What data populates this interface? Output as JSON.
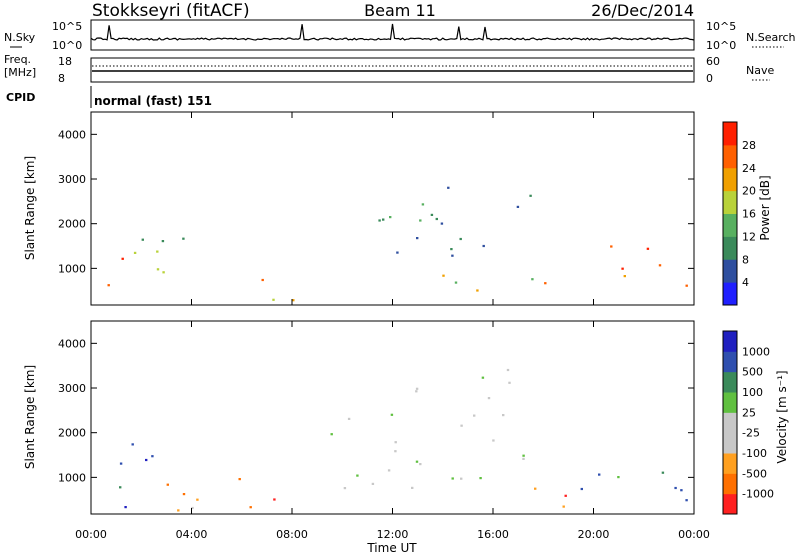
{
  "header": {
    "station": "Stokkseyri (fitACF)",
    "beam": "Beam 11",
    "date": "26/Dec/2014"
  },
  "top_panels": {
    "nsky_label": "N.Sky",
    "nsky_ticks": [
      "10^5",
      "10^0"
    ],
    "nsearch_label": "N.Search",
    "nsearch_ticks": [
      "10^5",
      "10^0"
    ],
    "freq_label": "Freq.",
    "freq_unit": "[MHz]",
    "freq_ticks": [
      "18",
      "8"
    ],
    "nave_label": "Nave",
    "nave_ticks": [
      "60",
      "0"
    ],
    "cpid_label": "CPID",
    "cpid_value": "normal (fast) 151"
  },
  "colors": {
    "power_scale": [
      "#2020ff",
      "#2f4f9f",
      "#3a8a5a",
      "#58b060",
      "#b9d23a",
      "#f0a000",
      "#ff6000",
      "#ff2000"
    ],
    "velocity_scale": [
      "#ff2020",
      "#ff7000",
      "#ffa020",
      "#c8c8c8",
      "#c8c8c8",
      "#60c040",
      "#3a8a5a",
      "#2f4faf",
      "#2020c0"
    ]
  },
  "chart_data": [
    {
      "type": "heatmap",
      "panel": "power",
      "ylabel": "Slant Range [km]",
      "ylim": [
        180,
        4500
      ],
      "y_ticks": [
        "1000",
        "2000",
        "3000",
        "4000"
      ],
      "x_ticks": [
        "00:00",
        "04:00",
        "08:00",
        "12:00",
        "16:00",
        "20:00",
        "00:00"
      ],
      "colorbar": {
        "label": "Power [dB]",
        "ticks": [
          "4",
          "8",
          "12",
          "16",
          "20",
          "24",
          "28"
        ]
      },
      "echo_regions": [
        {
          "t": [
            0.0,
            1.6
          ],
          "r": [
            350,
            1300
          ],
          "level": 6
        },
        {
          "t": [
            1.6,
            4.6
          ],
          "r": [
            250,
            1800
          ],
          "level": 3
        },
        {
          "t": [
            4.6,
            8.5
          ],
          "r": [
            220,
            800
          ],
          "level": 5
        },
        {
          "t": [
            10.5,
            13.0
          ],
          "r": [
            1300,
            2600
          ],
          "level": 2
        },
        {
          "t": [
            12.0,
            17.8
          ],
          "r": [
            500,
            1000
          ],
          "level": 4
        },
        {
          "t": [
            13.0,
            17.5
          ],
          "r": [
            1100,
            2900
          ],
          "level": 2
        },
        {
          "t": [
            17.8,
            19.2
          ],
          "r": [
            250,
            900
          ],
          "level": 7
        },
        {
          "t": [
            19.5,
            24.0
          ],
          "r": [
            600,
            1600
          ],
          "level": 6
        }
      ]
    },
    {
      "type": "heatmap",
      "panel": "velocity",
      "ylabel": "Slant Range [km]",
      "xlabel": "Time UT",
      "ylim": [
        180,
        4500
      ],
      "y_ticks": [
        "1000",
        "2000",
        "3000",
        "4000"
      ],
      "x_ticks": [
        "00:00",
        "04:00",
        "08:00",
        "12:00",
        "16:00",
        "20:00",
        "00:00"
      ],
      "colorbar": {
        "label": "Velocity [m s⁻¹]",
        "ticks": [
          "1000",
          "500",
          "100",
          "25",
          "-25",
          "-100",
          "-500",
          "-1000"
        ]
      },
      "echo_regions": [
        {
          "t": [
            0.0,
            2.5
          ],
          "r": [
            250,
            1800
          ],
          "level": 7
        },
        {
          "t": [
            2.5,
            6.0
          ],
          "r": [
            250,
            1400
          ],
          "level": 2
        },
        {
          "t": [
            6.0,
            9.0
          ],
          "r": [
            200,
            600
          ],
          "level": 1
        },
        {
          "t": [
            9.5,
            17.5
          ],
          "r": [
            700,
            2500
          ],
          "level": 4
        },
        {
          "t": [
            12.5,
            17.0
          ],
          "r": [
            2500,
            3500
          ],
          "level": 4
        },
        {
          "t": [
            16.0,
            19.0
          ],
          "r": [
            250,
            900
          ],
          "level": 1
        },
        {
          "t": [
            19.0,
            24.0
          ],
          "r": [
            500,
            1500
          ],
          "level": 6
        }
      ]
    }
  ]
}
